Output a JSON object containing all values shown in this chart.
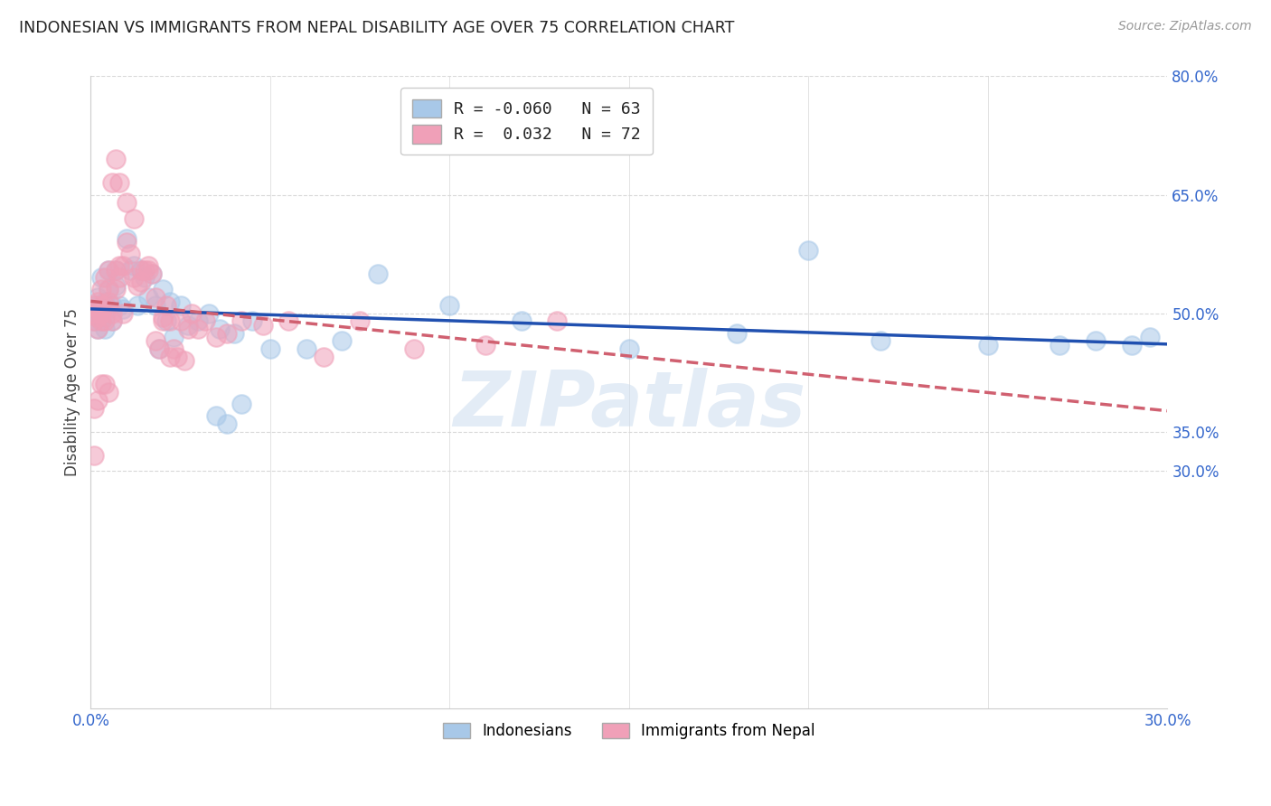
{
  "title": "INDONESIAN VS IMMIGRANTS FROM NEPAL DISABILITY AGE OVER 75 CORRELATION CHART",
  "source": "Source: ZipAtlas.com",
  "ylabel": "Disability Age Over 75",
  "xlim": [
    0.0,
    0.3
  ],
  "ylim": [
    0.0,
    0.8
  ],
  "xticks": [
    0.0,
    0.05,
    0.1,
    0.15,
    0.2,
    0.25,
    0.3
  ],
  "xticklabels": [
    "0.0%",
    "",
    "",
    "",
    "",
    "",
    "30.0%"
  ],
  "yticks": [
    0.3,
    0.35,
    0.5,
    0.65,
    0.8
  ],
  "yticklabels": [
    "30.0%",
    "35.0%",
    "50.0%",
    "65.0%",
    "80.0%"
  ],
  "legend_labels": [
    "Indonesians",
    "Immigrants from Nepal"
  ],
  "R_indonesian": -0.06,
  "N_indonesian": 63,
  "R_nepal": 0.032,
  "N_nepal": 72,
  "color_indonesian": "#a8c8e8",
  "color_nepal": "#f0a0b8",
  "trendline_color_indonesian": "#2050b0",
  "trendline_color_nepal": "#d06070",
  "watermark": "ZIPatlas",
  "grid_color": "#d8d8d8",
  "background_color": "#ffffff",
  "indonesian_x": [
    0.001,
    0.001,
    0.001,
    0.002,
    0.002,
    0.002,
    0.002,
    0.003,
    0.003,
    0.003,
    0.003,
    0.004,
    0.004,
    0.004,
    0.004,
    0.005,
    0.005,
    0.005,
    0.006,
    0.006,
    0.007,
    0.007,
    0.008,
    0.009,
    0.01,
    0.011,
    0.012,
    0.013,
    0.014,
    0.015,
    0.016,
    0.017,
    0.018,
    0.019,
    0.02,
    0.021,
    0.022,
    0.023,
    0.025,
    0.027,
    0.03,
    0.033,
    0.036,
    0.04,
    0.045,
    0.05,
    0.06,
    0.07,
    0.08,
    0.1,
    0.12,
    0.15,
    0.18,
    0.2,
    0.22,
    0.25,
    0.27,
    0.28,
    0.29,
    0.295,
    0.035,
    0.038,
    0.042
  ],
  "indonesian_y": [
    0.51,
    0.5,
    0.49,
    0.505,
    0.495,
    0.52,
    0.48,
    0.51,
    0.5,
    0.49,
    0.545,
    0.505,
    0.515,
    0.495,
    0.48,
    0.555,
    0.53,
    0.505,
    0.51,
    0.49,
    0.555,
    0.535,
    0.51,
    0.505,
    0.595,
    0.555,
    0.56,
    0.51,
    0.555,
    0.545,
    0.52,
    0.55,
    0.51,
    0.455,
    0.53,
    0.49,
    0.515,
    0.47,
    0.51,
    0.485,
    0.49,
    0.5,
    0.48,
    0.475,
    0.49,
    0.455,
    0.455,
    0.465,
    0.55,
    0.51,
    0.49,
    0.455,
    0.475,
    0.58,
    0.465,
    0.46,
    0.46,
    0.465,
    0.46,
    0.47,
    0.37,
    0.36,
    0.385
  ],
  "nepal_x": [
    0.001,
    0.001,
    0.001,
    0.002,
    0.002,
    0.002,
    0.002,
    0.003,
    0.003,
    0.003,
    0.003,
    0.004,
    0.004,
    0.004,
    0.005,
    0.005,
    0.005,
    0.006,
    0.006,
    0.007,
    0.007,
    0.008,
    0.008,
    0.009,
    0.01,
    0.011,
    0.012,
    0.013,
    0.014,
    0.015,
    0.016,
    0.017,
    0.018,
    0.019,
    0.02,
    0.021,
    0.022,
    0.023,
    0.025,
    0.027,
    0.028,
    0.03,
    0.032,
    0.035,
    0.038,
    0.042,
    0.048,
    0.055,
    0.065,
    0.075,
    0.09,
    0.11,
    0.13,
    0.006,
    0.007,
    0.008,
    0.009,
    0.01,
    0.012,
    0.014,
    0.016,
    0.018,
    0.02,
    0.022,
    0.024,
    0.026,
    0.003,
    0.004,
    0.005,
    0.002,
    0.001,
    0.001
  ],
  "nepal_y": [
    0.51,
    0.5,
    0.49,
    0.505,
    0.515,
    0.48,
    0.495,
    0.51,
    0.5,
    0.49,
    0.53,
    0.545,
    0.51,
    0.49,
    0.555,
    0.53,
    0.515,
    0.5,
    0.49,
    0.555,
    0.53,
    0.545,
    0.56,
    0.5,
    0.59,
    0.575,
    0.545,
    0.535,
    0.555,
    0.555,
    0.555,
    0.55,
    0.52,
    0.455,
    0.495,
    0.51,
    0.49,
    0.455,
    0.49,
    0.48,
    0.5,
    0.48,
    0.49,
    0.47,
    0.475,
    0.49,
    0.485,
    0.49,
    0.445,
    0.49,
    0.455,
    0.46,
    0.49,
    0.665,
    0.695,
    0.665,
    0.56,
    0.64,
    0.62,
    0.54,
    0.56,
    0.465,
    0.49,
    0.445,
    0.445,
    0.44,
    0.41,
    0.41,
    0.4,
    0.39,
    0.38,
    0.32
  ]
}
